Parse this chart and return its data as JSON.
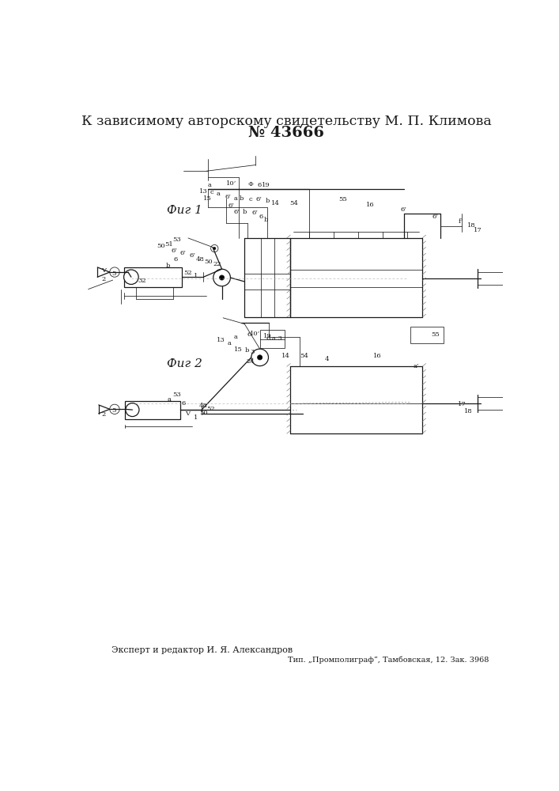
{
  "title_line1": "К зависимому авторскому свидетельству М. П. Климова",
  "title_line2": "№ 43666",
  "fig1_label": "Фиг 1",
  "fig2_label": "Фиг 2",
  "footer_left": "Эксперт и редактор И. Я. Александров",
  "footer_right": "Тип. „Промполиграф“, Тамбовская, 12. Зак. 3968",
  "bg_color": "#ffffff",
  "line_color": "#1a1a1a",
  "title_fontsize": 12.5,
  "fig_label_fontsize": 11,
  "anno_fontsize": 6.0,
  "footer_fontsize": 8.0
}
